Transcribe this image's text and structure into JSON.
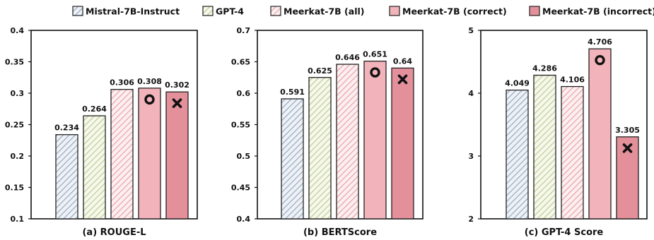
{
  "legend": [
    {
      "name": "Mistral-7B-Instruct",
      "pattern": "hatch",
      "color": "#8fa3bd"
    },
    {
      "name": "GPT-4",
      "pattern": "hatch",
      "color": "#b9c98a"
    },
    {
      "name": "Meerkat-7B (all)",
      "pattern": "hatch",
      "color": "#e89aa6"
    },
    {
      "name": "Meerkat-7B (correct)",
      "pattern": "solid",
      "color": "#f2b3bb"
    },
    {
      "name": "Meerkat-7B (incorrect)",
      "pattern": "solid",
      "color": "#e3909b"
    }
  ],
  "chart_data": [
    {
      "type": "bar",
      "title": "(a) ROUGE-L",
      "categories": [
        "Mistral-7B-Instruct",
        "GPT-4",
        "Meerkat-7B (all)",
        "Meerkat-7B (correct)",
        "Meerkat-7B (incorrect)"
      ],
      "values": [
        0.234,
        0.264,
        0.306,
        0.308,
        0.302
      ],
      "value_labels": [
        "0.234",
        "0.264",
        "0.306",
        "0.308",
        "0.302"
      ],
      "ylim": [
        0.1,
        0.4
      ],
      "yticks": [
        "0.1",
        "0.15",
        "0.2",
        "0.25",
        "0.3",
        "0.35",
        "0.4"
      ],
      "markers": [
        "",
        "",
        "",
        "circle",
        "cross"
      ]
    },
    {
      "type": "bar",
      "title": "(b) BERTScore",
      "categories": [
        "Mistral-7B-Instruct",
        "GPT-4",
        "Meerkat-7B (all)",
        "Meerkat-7B (correct)",
        "Meerkat-7B (incorrect)"
      ],
      "values": [
        0.591,
        0.625,
        0.646,
        0.651,
        0.64
      ],
      "value_labels": [
        "0.591",
        "0.625",
        "0.646",
        "0.651",
        "0.64"
      ],
      "ylim": [
        0.4,
        0.7
      ],
      "yticks": [
        "0.4",
        "0.45",
        "0.5",
        "0.55",
        "0.6",
        "0.65",
        "0.7"
      ],
      "markers": [
        "",
        "",
        "",
        "circle",
        "cross"
      ]
    },
    {
      "type": "bar",
      "title": "(c) GPT-4 Score",
      "categories": [
        "Mistral-7B-Instruct",
        "GPT-4",
        "Meerkat-7B (all)",
        "Meerkat-7B (correct)",
        "Meerkat-7B (incorrect)"
      ],
      "values": [
        4.049,
        4.286,
        4.106,
        4.706,
        3.305
      ],
      "value_labels": [
        "4.049",
        "4.286",
        "4.106",
        "4.706",
        "3.305"
      ],
      "ylim": [
        2,
        5
      ],
      "yticks": [
        "2",
        "3",
        "4",
        "5"
      ],
      "markers": [
        "",
        "",
        "",
        "circle",
        "cross"
      ]
    }
  ]
}
